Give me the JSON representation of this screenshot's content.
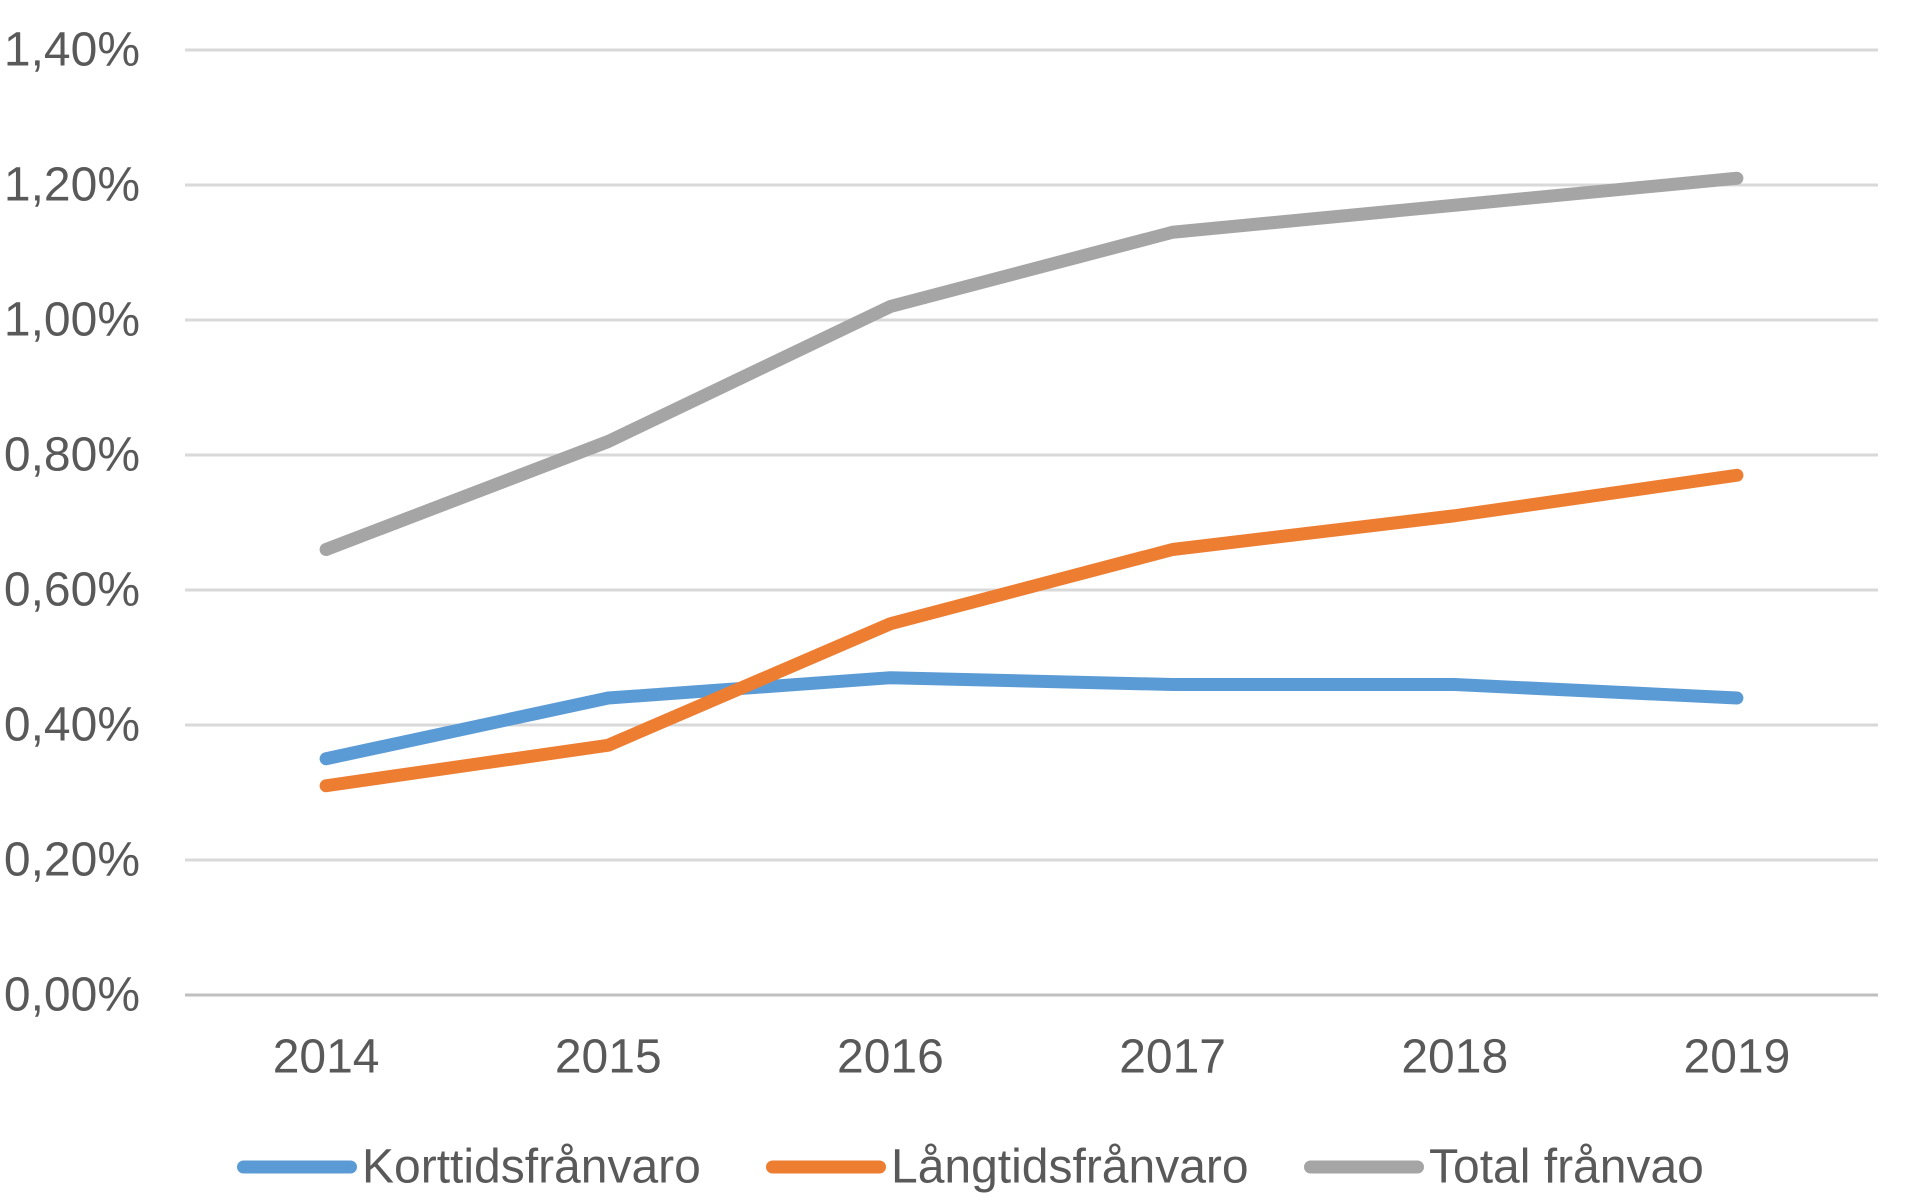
{
  "chart_data": {
    "type": "line",
    "title": "",
    "xlabel": "",
    "ylabel": "",
    "categories": [
      "2014",
      "2015",
      "2016",
      "2017",
      "2018",
      "2019"
    ],
    "series": [
      {
        "name": "Korttidsfrånvaro",
        "color": "#5B9BD5",
        "values": [
          0.35,
          0.44,
          0.47,
          0.46,
          0.46,
          0.44
        ]
      },
      {
        "name": "Långtidsfrånvaro",
        "color": "#ED7D31",
        "values": [
          0.31,
          0.37,
          0.55,
          0.66,
          0.71,
          0.77
        ]
      },
      {
        "name": "Total frånvao",
        "color": "#A5A5A5",
        "values": [
          0.66,
          0.82,
          1.02,
          1.13,
          1.17,
          1.21
        ]
      }
    ],
    "y_axis": {
      "min": 0,
      "max": 1.4,
      "step": 0.2,
      "tick_labels": [
        "0,00%",
        "0,20%",
        "0,40%",
        "0,60%",
        "0,80%",
        "1,00%",
        "1,20%",
        "1,40%"
      ]
    },
    "grid": true,
    "legend_position": "bottom",
    "colors": {
      "gridline": "#D9D9D9",
      "baseline": "#BFBFBF",
      "text": "#595959"
    }
  }
}
